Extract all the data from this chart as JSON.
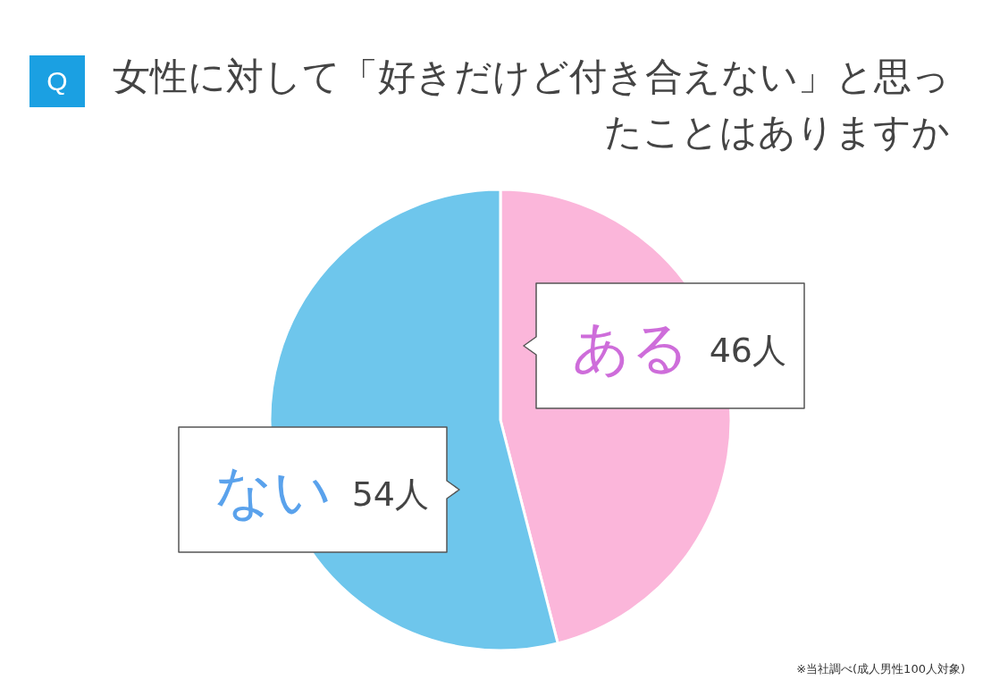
{
  "chart_data": {
    "type": "pie",
    "title": "女性に対して「好きだけど付き合えない」と思ったことはありますか",
    "categories": [
      "ある",
      "ない"
    ],
    "values": [
      46,
      54
    ],
    "colors": [
      "#fbb6da",
      "#6ec6ec"
    ],
    "value_labels": [
      "46人",
      "54人"
    ],
    "annotations": [
      "Q",
      "※当社調べ(成人男性100人対象)"
    ]
  }
}
